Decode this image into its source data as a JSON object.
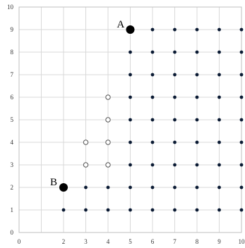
{
  "chart_data": {
    "type": "scatter",
    "title": "",
    "xlabel": "",
    "ylabel": "",
    "xlim": [
      0,
      10
    ],
    "ylim": [
      0,
      10
    ],
    "xticks": [
      0,
      1,
      2,
      3,
      4,
      5,
      6,
      7,
      8,
      9,
      10
    ],
    "yticks": [
      0,
      1,
      2,
      3,
      4,
      5,
      6,
      7,
      8,
      9,
      10
    ],
    "x_tick_labels": [
      "0",
      "2",
      "3",
      "4",
      "5",
      "6",
      "7",
      "8",
      "9",
      "10"
    ],
    "x_tick_positions": [
      0,
      2,
      3,
      4,
      5,
      6,
      7,
      8,
      9,
      10
    ],
    "y_tick_labels": [
      "0",
      "1",
      "2",
      "3",
      "4",
      "5",
      "6",
      "7",
      "8",
      "9",
      "10"
    ],
    "grid": true,
    "legend": "none",
    "series": [
      {
        "marker": "filled-dot",
        "color": "#0a1a33",
        "points": [
          [
            2,
            1
          ],
          [
            3,
            1
          ],
          [
            4,
            1
          ],
          [
            5,
            1
          ],
          [
            6,
            1
          ],
          [
            7,
            1
          ],
          [
            8,
            1
          ],
          [
            9,
            1
          ],
          [
            10,
            1
          ],
          [
            3,
            2
          ],
          [
            4,
            2
          ],
          [
            5,
            2
          ],
          [
            6,
            2
          ],
          [
            7,
            2
          ],
          [
            8,
            2
          ],
          [
            9,
            2
          ],
          [
            10,
            2
          ],
          [
            5,
            3
          ],
          [
            6,
            3
          ],
          [
            7,
            3
          ],
          [
            8,
            3
          ],
          [
            9,
            3
          ],
          [
            10,
            3
          ],
          [
            5,
            4
          ],
          [
            6,
            4
          ],
          [
            7,
            4
          ],
          [
            8,
            4
          ],
          [
            9,
            4
          ],
          [
            10,
            4
          ],
          [
            5,
            5
          ],
          [
            6,
            5
          ],
          [
            7,
            5
          ],
          [
            8,
            5
          ],
          [
            9,
            5
          ],
          [
            10,
            5
          ],
          [
            5,
            6
          ],
          [
            6,
            6
          ],
          [
            7,
            6
          ],
          [
            8,
            6
          ],
          [
            9,
            6
          ],
          [
            10,
            6
          ],
          [
            5,
            7
          ],
          [
            6,
            7
          ],
          [
            7,
            7
          ],
          [
            8,
            7
          ],
          [
            9,
            7
          ],
          [
            10,
            7
          ],
          [
            5,
            8
          ],
          [
            6,
            8
          ],
          [
            7,
            8
          ],
          [
            8,
            8
          ],
          [
            9,
            8
          ],
          [
            10,
            8
          ],
          [
            6,
            9
          ],
          [
            7,
            9
          ],
          [
            8,
            9
          ],
          [
            9,
            9
          ],
          [
            10,
            9
          ]
        ]
      },
      {
        "marker": "hollow-circle",
        "color": "#555555",
        "points": [
          [
            3,
            3
          ],
          [
            4,
            3
          ],
          [
            3,
            4
          ],
          [
            4,
            4
          ],
          [
            4,
            5
          ],
          [
            4,
            6
          ]
        ]
      }
    ],
    "labeled_points": [
      {
        "label": "A",
        "x": 5,
        "y": 9
      },
      {
        "label": "B",
        "x": 2,
        "y": 2
      }
    ]
  }
}
